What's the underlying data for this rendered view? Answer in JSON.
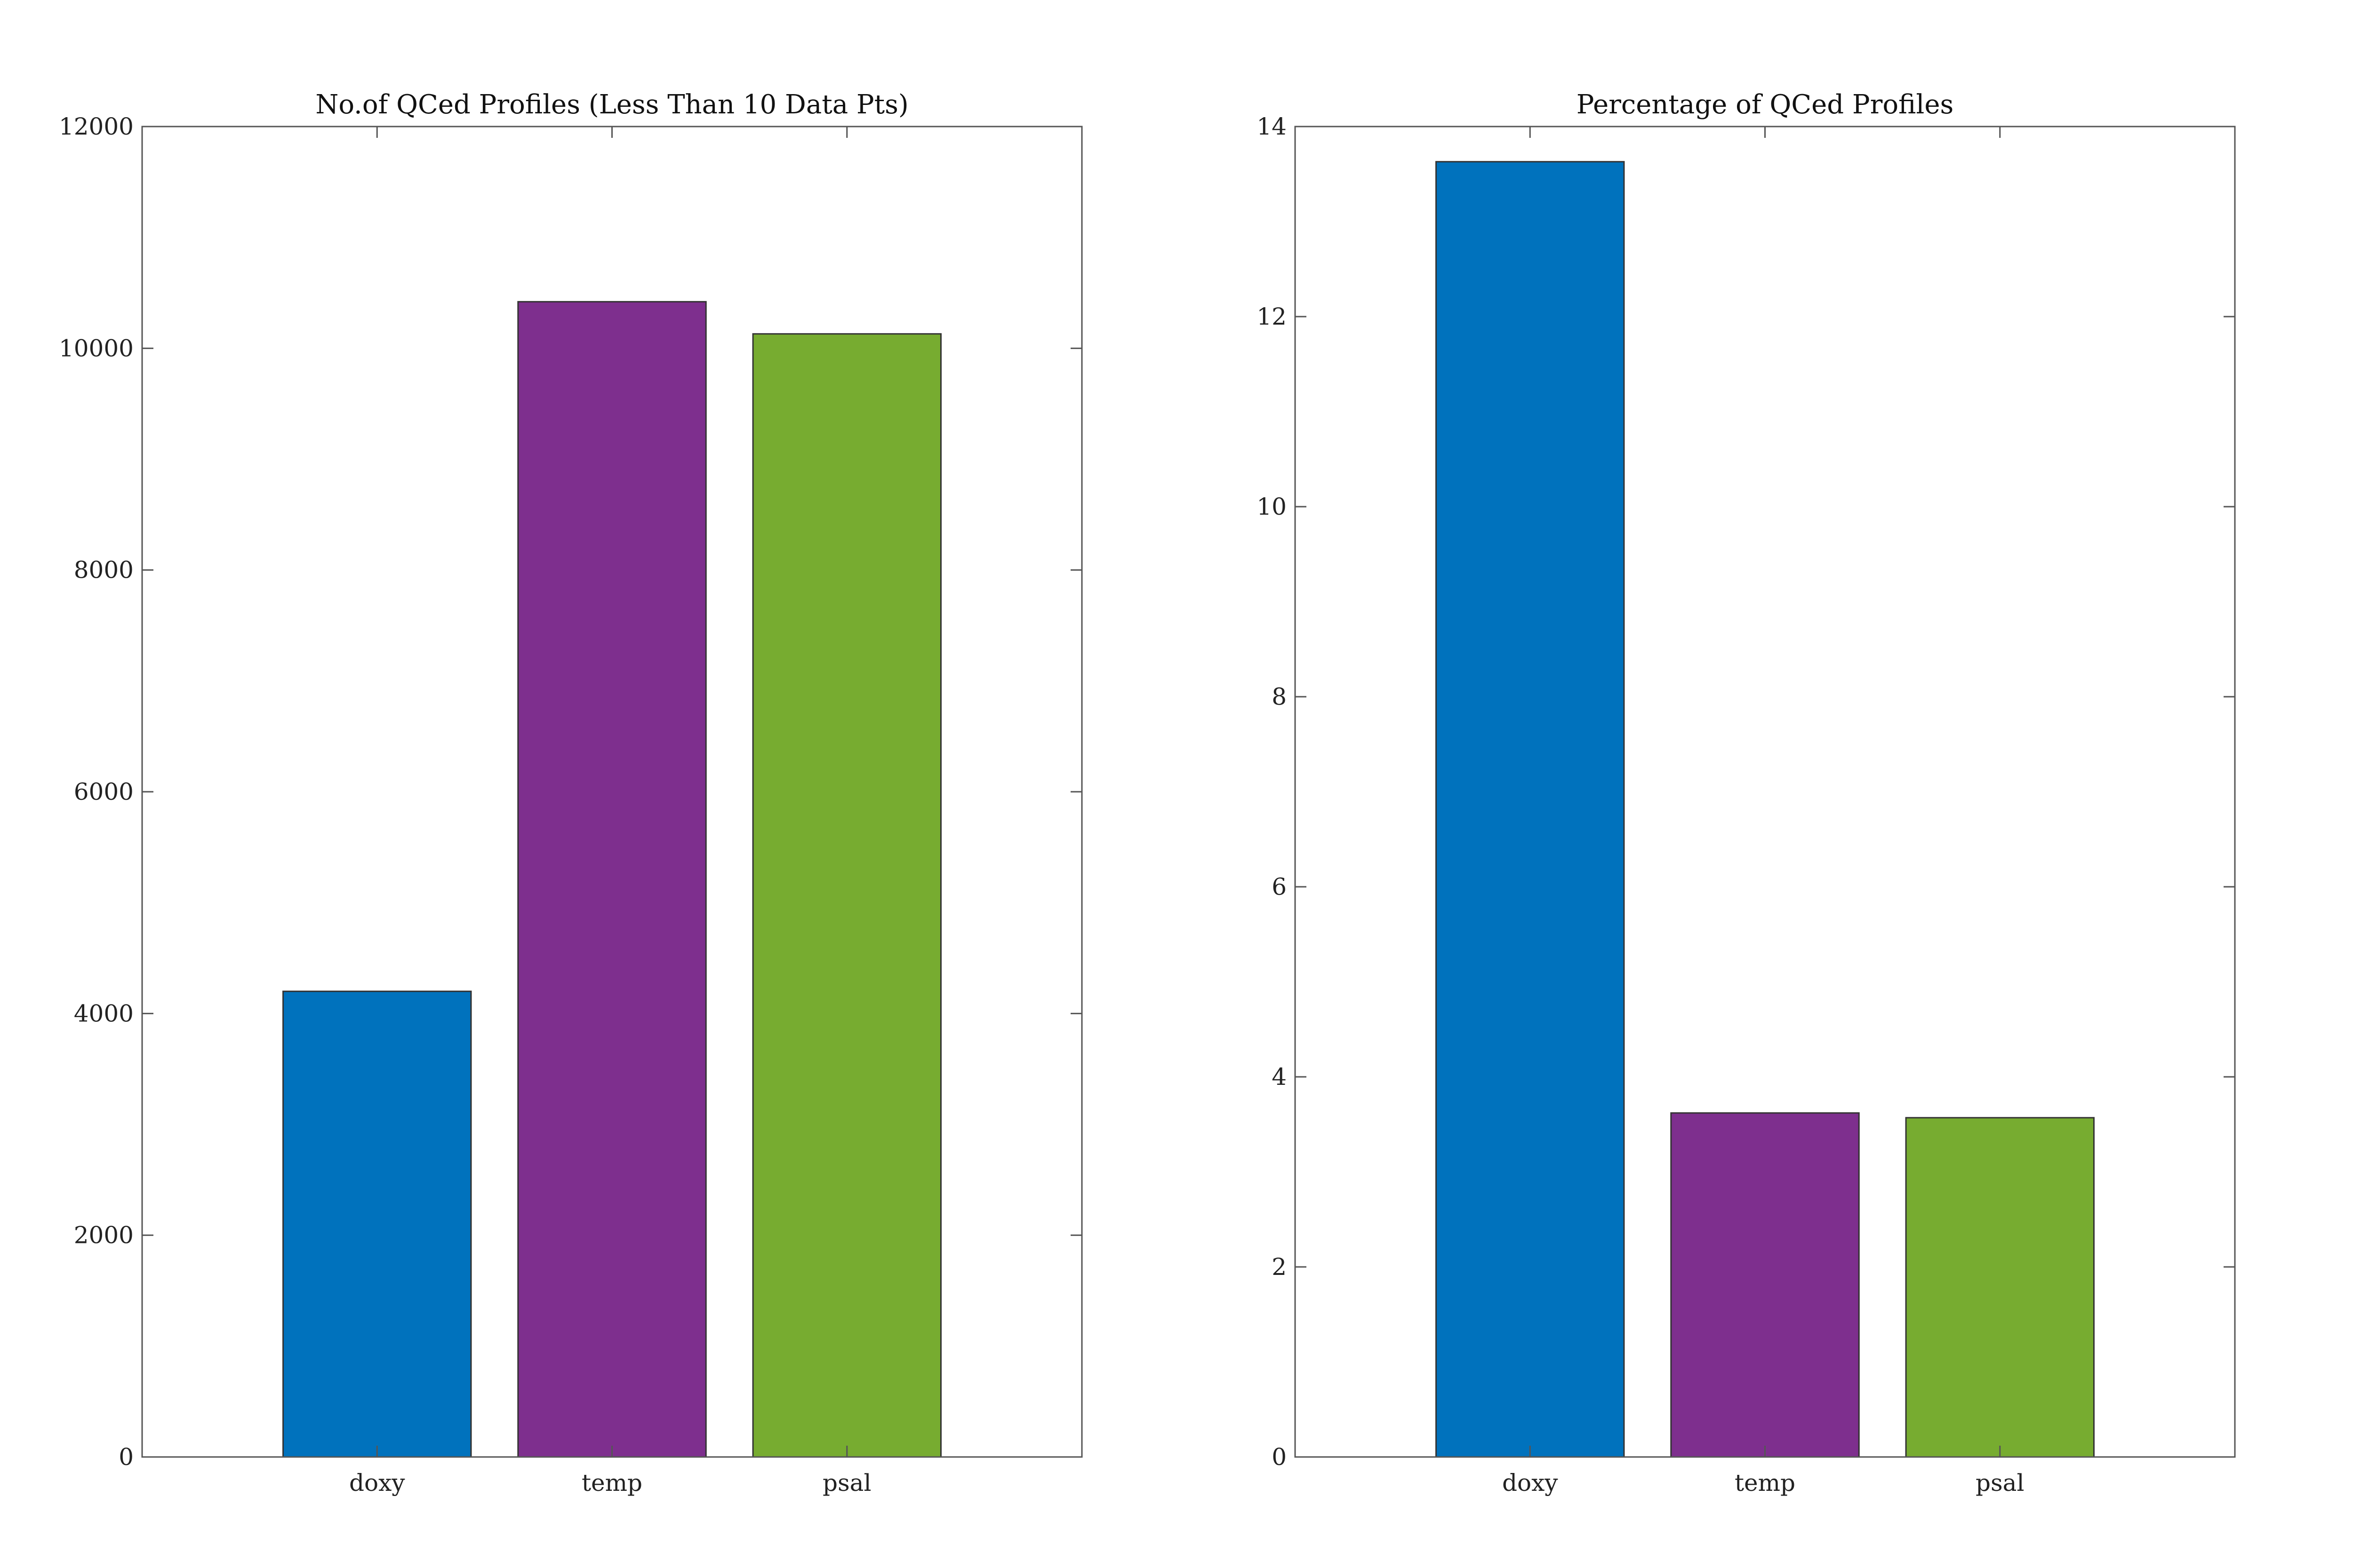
{
  "chart_data": [
    {
      "type": "bar",
      "title": "No.of QCed Profiles (Less Than 10 Data Pts)",
      "xlabel": "",
      "ylabel": "",
      "categories": [
        "doxy",
        "temp",
        "psal"
      ],
      "values": [
        4200,
        10420,
        10130
      ],
      "ylim": [
        0,
        12000
      ],
      "xlim": [
        0,
        4
      ],
      "yticks": [
        0,
        2000,
        4000,
        6000,
        8000,
        10000,
        12000
      ],
      "ytick_labels": [
        "0",
        "2000",
        "4000",
        "6000",
        "8000",
        "10000",
        "12000"
      ],
      "colors": [
        "#0072BD",
        "#7E2F8E",
        "#77AC30"
      ],
      "grid": false,
      "legend": "none"
    },
    {
      "type": "bar",
      "title": "Percentage of QCed Profiles",
      "xlabel": "",
      "ylabel": "",
      "categories": [
        "doxy",
        "temp",
        "psal"
      ],
      "values": [
        13.63,
        3.62,
        3.57
      ],
      "ylim": [
        0,
        14
      ],
      "xlim": [
        0,
        4
      ],
      "yticks": [
        0,
        2,
        4,
        6,
        8,
        10,
        12,
        14
      ],
      "ytick_labels": [
        "0",
        "2",
        "4",
        "6",
        "8",
        "10",
        "12",
        "14"
      ],
      "colors": [
        "#0072BD",
        "#7E2F8E",
        "#77AC30"
      ],
      "grid": false,
      "legend": "none"
    }
  ]
}
